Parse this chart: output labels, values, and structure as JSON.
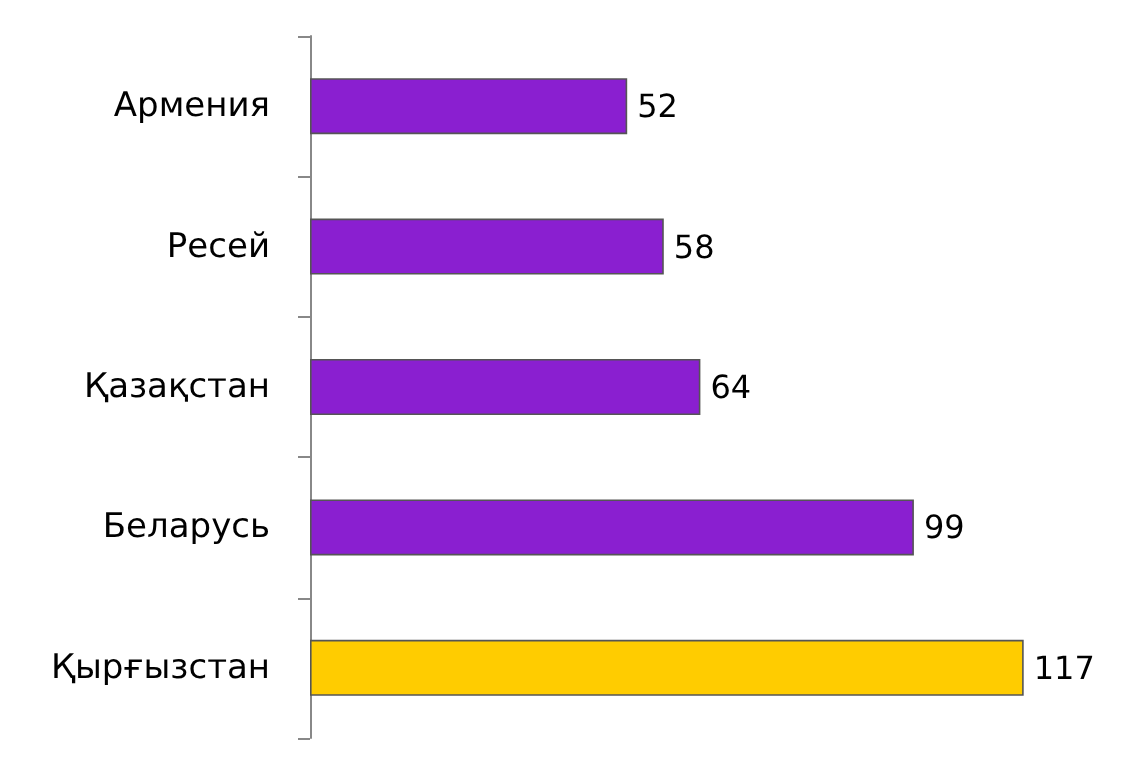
{
  "chart_data": {
    "type": "bar",
    "orientation": "horizontal",
    "categories": [
      "Армения",
      "Ресей",
      "Қазақстан",
      "Беларусь",
      "Қырғызстан"
    ],
    "values": [
      52,
      58,
      64,
      99,
      117
    ],
    "colors": [
      "#8a1fd0",
      "#8a1fd0",
      "#8a1fd0",
      "#8a1fd0",
      "#ffcc00"
    ],
    "data_labels": true,
    "tick_labels": "y"
  }
}
